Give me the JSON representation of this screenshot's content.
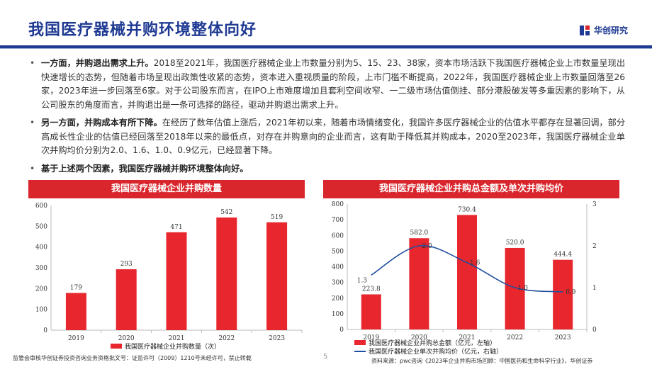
{
  "header": {
    "title": "我国医疗器械并购环境整体向好",
    "brand": "华创研究"
  },
  "bullets": [
    {
      "lead": "一方面，并购退出需求上升。",
      "text": "2018至2021年，我国医疗器械企业上市数量分别为5、15、23、38家，资本市场活跃下我国医疗器械企业上市数量呈现出快速增长的态势，但随着市场呈现出政策性收紧的态势，资本进入重视质量的阶段，上市门槛不断提高，2022年，我国医疗器械企业上市数量回落至26家，2023年进一步回落至6家。对于公司股东而言，在IPO上市难度增加且套利空间收窄、一二级市场估值倒挂、部分港股破发等多重因素的影响下，从公司股东的角度而言，并购退出是一条可选择的路径，驱动并购退出需求上升。"
    },
    {
      "lead": "另一方面，并购成本有所下降。",
      "text": "在经历了数年估值上涨后，2021年初以来，随着市场情绪变化，我国许多医疗器械企业的估值水平都存在显著回调，部分高成长性企业的估值已经回落至2018年以来的最低点，对存在并购意向的企业而言，这有助于降低其并购成本，2020至2023年，我国医疗器械企业单次并购均价分别为2.0、1.6、1.0、0.9亿元，已经显著下降。"
    },
    {
      "lead": "基于上述两个因素，我国医疗器械并购环境整体向好。",
      "text": ""
    }
  ],
  "colors": {
    "brand_blue": "#1f3a93",
    "bar_red": "#e8262d",
    "line_blue": "#1f4e9e",
    "title_bar_red": "#d9262c"
  },
  "chart_data": [
    {
      "type": "bar",
      "title": "我国医疗器械企业并购数量",
      "categories": [
        "2019",
        "2020",
        "2021",
        "2022",
        "2023"
      ],
      "series": [
        {
          "name": "我国医疗器械企业并购数量（次）",
          "values": [
            179,
            293,
            471,
            542,
            519
          ]
        }
      ],
      "ylim": [
        0,
        600
      ],
      "yticks": [
        0,
        100,
        200,
        300,
        400,
        500,
        600
      ],
      "legend": "bottom"
    },
    {
      "type": "bar",
      "title": "我国医疗器械企业并购总金额及单次并购均价",
      "categories": [
        "2019",
        "2020",
        "2021",
        "2022",
        "2023"
      ],
      "series": [
        {
          "name": "我国医疗器械企业并购总金额（亿元，左轴）",
          "type": "bar",
          "axis": "left",
          "values": [
            223.8,
            582.0,
            730.4,
            520.0,
            444.4
          ],
          "labels": [
            "223.8",
            "582.0",
            "730.4",
            "520.0",
            "444.4"
          ]
        },
        {
          "name": "我国医疗器械企业单次并购均价（亿元，右轴）",
          "type": "line",
          "axis": "right",
          "values": [
            1.3,
            2.0,
            1.6,
            1.0,
            0.9
          ],
          "labels": [
            "1.3",
            "2.0",
            "1.6",
            "1.0",
            "0.9"
          ]
        }
      ],
      "ylim": [
        0,
        800
      ],
      "yticks": [
        0,
        100,
        200,
        300,
        400,
        500,
        600,
        700,
        800
      ],
      "y2lim": [
        0,
        3
      ],
      "y2ticks": [
        0,
        1,
        2,
        3
      ],
      "legend": "bottom"
    }
  ],
  "footer": {
    "note": "监管会审核华创证券投资咨询业务资格批文号：证监许可（2009）1210号未经许可，禁止转载",
    "page": "5",
    "source": "资料来源：pwc咨询《2023年企业并购市场回顾：中国医药和生命科学行业》，华创证券"
  }
}
